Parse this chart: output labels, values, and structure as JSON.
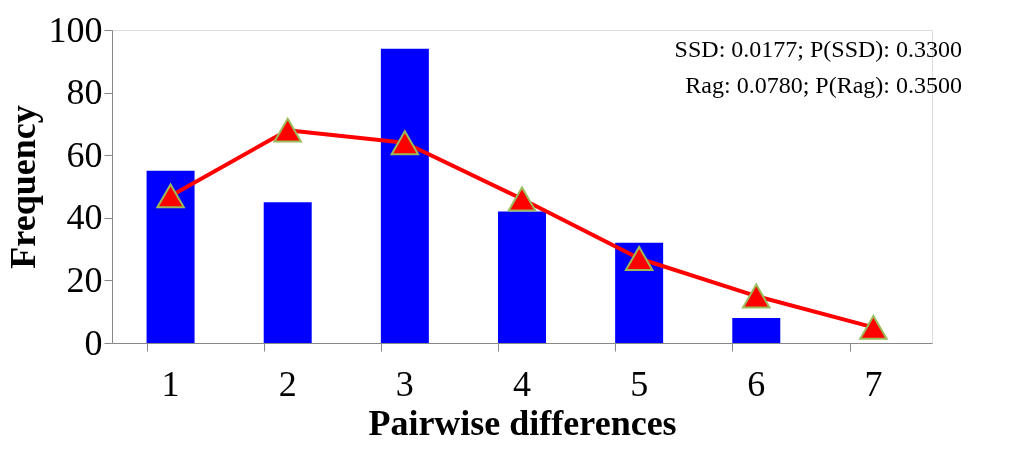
{
  "chart_data": {
    "type": "bar",
    "xlabel": "Pairwise differences",
    "ylabel": "Frequency",
    "categories": [
      "1",
      "2",
      "3",
      "4",
      "5",
      "6",
      "7"
    ],
    "series": [
      {
        "color": "#0000ff",
        "values": [
          55,
          45,
          94,
          42,
          32,
          8,
          0
        ]
      },
      {
        "type": "line",
        "color": "#ff0000",
        "marker": "triangle",
        "values": [
          47,
          68,
          64,
          46,
          27,
          15,
          5
        ]
      }
    ],
    "ylim": [
      0,
      100
    ],
    "yticks": [
      0,
      20,
      40,
      60,
      80,
      100
    ],
    "annotations": [
      "SSD: 0.0177; P(SSD): 0.3300",
      "Rag:  0.0780;  P(Rag): 0.3500"
    ]
  }
}
